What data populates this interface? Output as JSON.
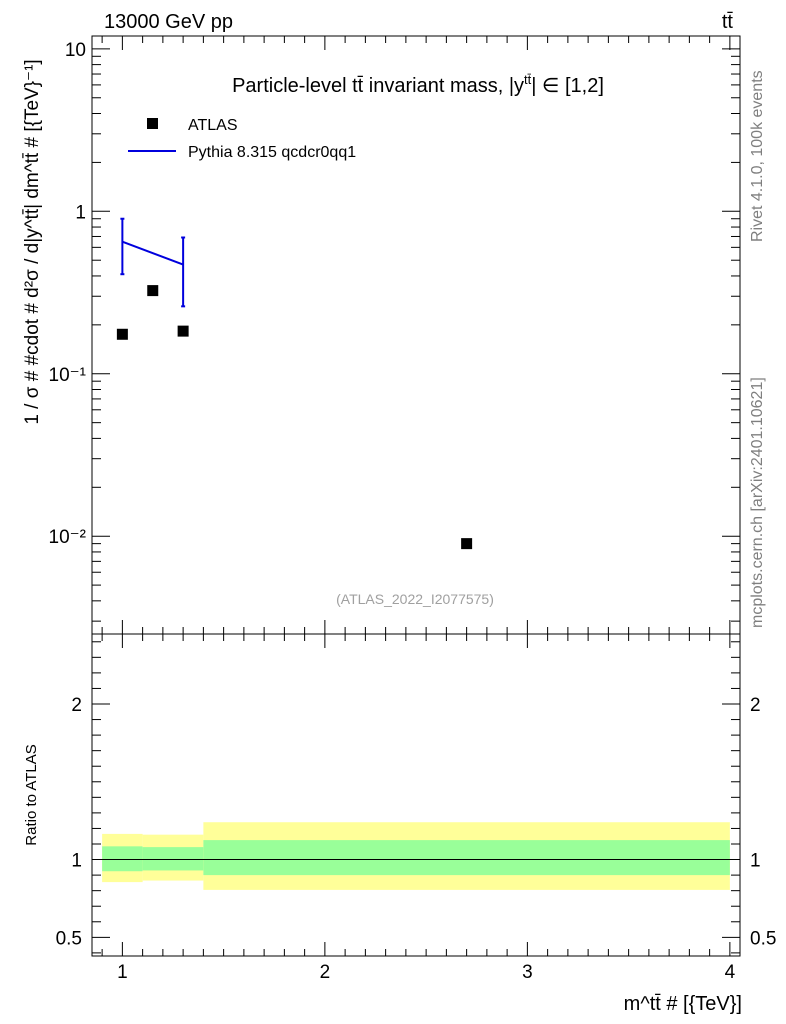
{
  "header": {
    "energy_label": "13000 GeV pp",
    "process_label": "tt̄"
  },
  "side_labels": {
    "rivet": "Rivet 4.1.0,  100k events",
    "source": "mcplots.cern.ch [arXiv:2401.10621]"
  },
  "chart_data": [
    {
      "type": "scatter",
      "title": "Particle-level tt̄ invariant mass, |y",
      "title_sup": "tt̄",
      "title_tail": "| ∈ [1,2]",
      "watermark": "(ATLAS_2022_I2077575)",
      "ylabel": "1 / σ # #cdot # d²σ / d|y^tt̄| dm^tt̄ # [{TeV}⁻¹]",
      "yscale": "log",
      "ylim": [
        0.0025,
        12
      ],
      "xlim": [
        0.85,
        4.05
      ],
      "y_tick_labels": [
        "10",
        "1",
        "10⁻¹",
        "10⁻²"
      ],
      "legend": [
        {
          "label": "ATLAS",
          "marker": "square",
          "color": "#000000"
        },
        {
          "label": "Pythia 8.315 qcdcr0qq1",
          "marker": "line",
          "color": "#0000dd"
        }
      ],
      "series": [
        {
          "name": "ATLAS",
          "x": [
            1.0,
            1.15,
            1.3,
            2.7
          ],
          "y": [
            0.175,
            0.325,
            0.183,
            0.009
          ]
        },
        {
          "name": "Pythia 8.315 qcdcr0qq1",
          "x": [
            1.0,
            1.3
          ],
          "y": [
            0.65,
            0.47
          ],
          "err_up": [
            0.9,
            0.69
          ],
          "err_down": [
            0.41,
            0.26
          ]
        }
      ]
    },
    {
      "type": "area",
      "ylabel": "Ratio to ATLAS",
      "xlabel": "m^tt̄ # [{TeV}]",
      "ylim": [
        0.38,
        2.45
      ],
      "xlim": [
        0.85,
        4.05
      ],
      "x_tick_labels": [
        "1",
        "2",
        "3",
        "4"
      ],
      "y_tick_labels": [
        "0.5",
        "1",
        "2"
      ],
      "reference": 1,
      "bands": [
        {
          "x_from": 0.9,
          "x_to": 1.1,
          "outer": [
            0.855,
            1.165
          ],
          "inner": [
            0.925,
            1.085
          ]
        },
        {
          "x_from": 1.1,
          "x_to": 1.4,
          "outer": [
            0.865,
            1.16
          ],
          "inner": [
            0.93,
            1.08
          ]
        },
        {
          "x_from": 1.4,
          "x_to": 4.0,
          "outer": [
            0.805,
            1.24
          ],
          "inner": [
            0.9,
            1.125
          ]
        }
      ],
      "band_colors": {
        "outer": "#ffff99",
        "inner": "#99ff99"
      }
    }
  ]
}
